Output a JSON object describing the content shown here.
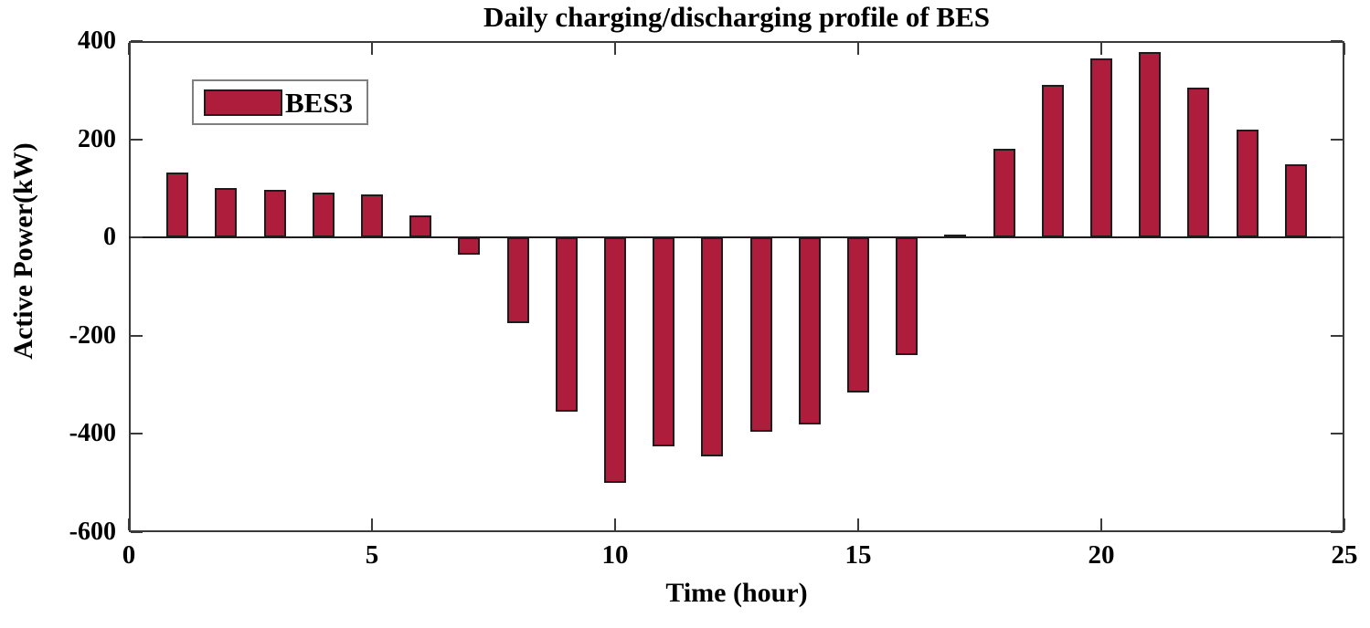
{
  "chart_data": {
    "type": "bar",
    "title": "Daily charging/discharging profile of BES",
    "xlabel": "Time (hour)",
    "ylabel": "Active Power(kW)",
    "xlim": [
      0,
      25
    ],
    "ylim": [
      -600,
      400
    ],
    "xticks": [
      0,
      5,
      10,
      15,
      20,
      25
    ],
    "yticks": [
      400,
      200,
      0,
      -200,
      -400,
      -600
    ],
    "grid": false,
    "legend_position": "upper-left",
    "legend": [
      {
        "name": "BES3",
        "color": "#AE1E3C"
      }
    ],
    "categories": [
      1,
      2,
      3,
      4,
      5,
      6,
      7,
      8,
      9,
      10,
      11,
      12,
      13,
      14,
      15,
      16,
      17,
      18,
      19,
      20,
      21,
      22,
      23,
      24
    ],
    "values": [
      133,
      100,
      97,
      92,
      88,
      45,
      -35,
      -175,
      -355,
      -500,
      -425,
      -445,
      -395,
      -380,
      -315,
      -240,
      6,
      180,
      310,
      365,
      378,
      306,
      220,
      149
    ],
    "bar_color": "#AE1E3C",
    "bar_edge_color": "#1C1C1C"
  },
  "colors": {
    "background": "#FFFFFF",
    "axis": "#3A3A3A",
    "zero_line": "#1C1C1C",
    "text": "#000000",
    "legend_border": "#7F7F7F"
  }
}
